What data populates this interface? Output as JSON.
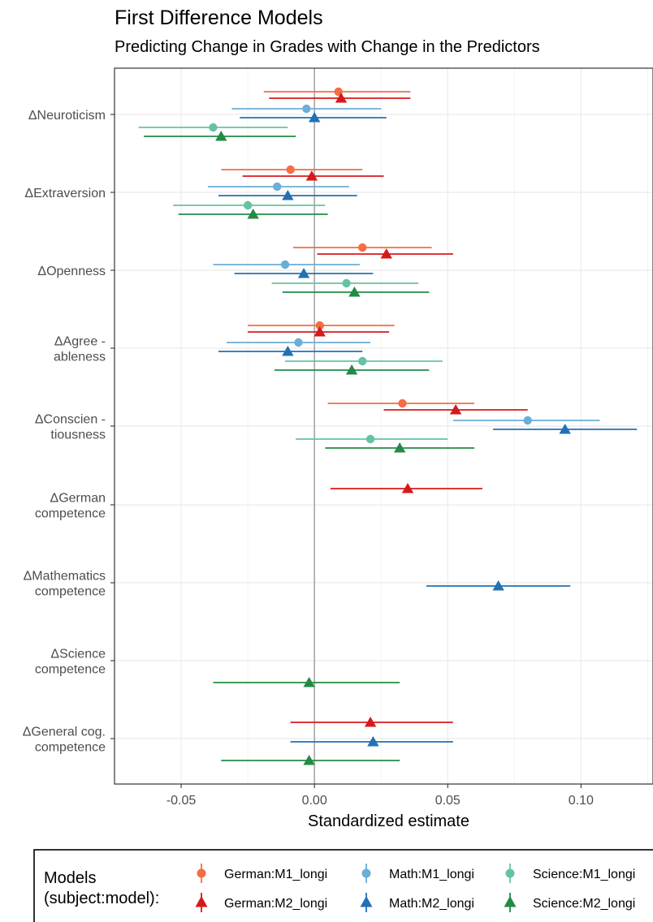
{
  "chart_data": {
    "type": "scatter",
    "subtype": "coefficient-plot",
    "title": "First Difference Models",
    "subtitle": "Predicting Change in Grades with Change in the Predictors",
    "xlabel": "Standardized estimate",
    "xlim": [
      -0.075,
      0.127
    ],
    "xticks": [
      -0.05,
      0.0,
      0.05,
      0.1
    ],
    "xtick_labels": [
      "-0.05",
      "0.00",
      "0.05",
      "0.10"
    ],
    "reference_line_x": 0,
    "grid": true,
    "predictors": [
      [
        "ΔNeuroticism"
      ],
      [
        "ΔExtraversion"
      ],
      [
        "ΔOpenness"
      ],
      [
        "ΔAgree -",
        "ableness"
      ],
      [
        "ΔConscien -",
        "tiousness"
      ],
      [
        "ΔGerman",
        "competence"
      ],
      [
        "ΔMathematics",
        "competence"
      ],
      [
        "ΔScience",
        "competence"
      ],
      [
        "ΔGeneral cog.",
        "competence"
      ]
    ],
    "legend": {
      "title": [
        "Models",
        "(subject:model):"
      ],
      "position": "bottom"
    },
    "series": [
      {
        "name": "German:M1_longi",
        "color": "#f46d43",
        "shape": "circle",
        "estimates": [
          0.009,
          -0.009,
          0.018,
          0.002,
          0.033,
          null,
          null,
          null,
          null
        ],
        "ci_low": [
          -0.019,
          -0.035,
          -0.008,
          -0.025,
          0.005,
          null,
          null,
          null,
          null
        ],
        "ci_high": [
          0.036,
          0.018,
          0.044,
          0.03,
          0.06,
          null,
          null,
          null,
          null
        ]
      },
      {
        "name": "German:M2_longi",
        "color": "#d7191c",
        "shape": "triangle",
        "estimates": [
          0.01,
          -0.001,
          0.027,
          0.002,
          0.053,
          0.035,
          null,
          null,
          0.021
        ],
        "ci_low": [
          -0.017,
          -0.027,
          0.001,
          -0.025,
          0.026,
          0.006,
          null,
          null,
          -0.009
        ],
        "ci_high": [
          0.036,
          0.026,
          0.052,
          0.028,
          0.08,
          0.063,
          null,
          null,
          0.052
        ]
      },
      {
        "name": "Math:M1_longi",
        "color": "#6baed6",
        "shape": "circle",
        "estimates": [
          -0.003,
          -0.014,
          -0.011,
          -0.006,
          0.08,
          null,
          null,
          null,
          null
        ],
        "ci_low": [
          -0.031,
          -0.04,
          -0.038,
          -0.033,
          0.052,
          null,
          null,
          null,
          null
        ],
        "ci_high": [
          0.025,
          0.013,
          0.017,
          0.021,
          0.107,
          null,
          null,
          null,
          null
        ]
      },
      {
        "name": "Math:M2_longi",
        "color": "#2171b5",
        "shape": "triangle",
        "estimates": [
          0.0,
          -0.01,
          -0.004,
          -0.01,
          0.094,
          null,
          0.069,
          null,
          0.022
        ],
        "ci_low": [
          -0.028,
          -0.036,
          -0.03,
          -0.036,
          0.067,
          null,
          0.042,
          null,
          -0.009
        ],
        "ci_high": [
          0.027,
          0.016,
          0.022,
          0.018,
          0.121,
          null,
          0.096,
          null,
          0.052
        ]
      },
      {
        "name": "Science:M1_longi",
        "color": "#66c2a5",
        "shape": "circle",
        "estimates": [
          -0.038,
          -0.025,
          0.012,
          0.018,
          0.021,
          null,
          null,
          null,
          null
        ],
        "ci_low": [
          -0.066,
          -0.053,
          -0.016,
          -0.011,
          -0.007,
          null,
          null,
          null,
          null
        ],
        "ci_high": [
          -0.01,
          0.004,
          0.039,
          0.048,
          0.05,
          null,
          null,
          null,
          null
        ]
      },
      {
        "name": "Science:M2_longi",
        "color": "#238b45",
        "shape": "triangle",
        "estimates": [
          -0.035,
          -0.023,
          0.015,
          0.014,
          0.032,
          null,
          null,
          -0.002,
          -0.002
        ],
        "ci_low": [
          -0.064,
          -0.051,
          -0.012,
          -0.015,
          0.004,
          null,
          null,
          -0.038,
          -0.035
        ],
        "ci_high": [
          -0.007,
          0.005,
          0.043,
          0.043,
          0.06,
          null,
          null,
          0.032,
          0.032
        ]
      }
    ]
  }
}
